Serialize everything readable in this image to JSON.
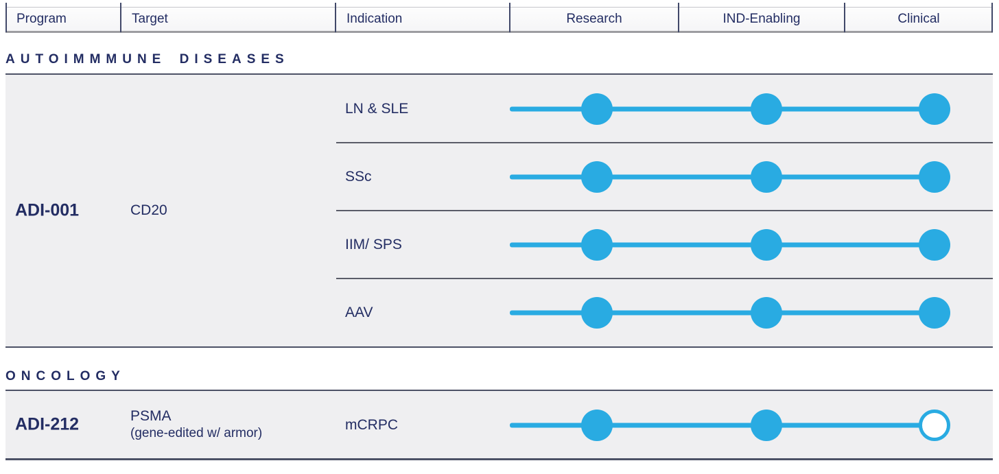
{
  "header": {
    "columns": [
      {
        "label": "Program"
      },
      {
        "label": "Target"
      },
      {
        "label": "Indication"
      },
      {
        "label": "Research"
      },
      {
        "label": "IND-Enabling"
      },
      {
        "label": "Clinical"
      }
    ]
  },
  "sections": [
    {
      "title": "AUTOIMMMUNE DISEASES",
      "programs": [
        {
          "name": "ADI-001",
          "target": "CD20",
          "target_sub": "",
          "rows": [
            {
              "indication": "LN & SLE",
              "stages": {
                "research": "filled",
                "ind_enabling": "filled",
                "clinical": "filled"
              }
            },
            {
              "indication": "SSc",
              "stages": {
                "research": "filled",
                "ind_enabling": "filled",
                "clinical": "filled"
              }
            },
            {
              "indication": "IIM/ SPS",
              "stages": {
                "research": "filled",
                "ind_enabling": "filled",
                "clinical": "filled"
              }
            },
            {
              "indication": "AAV",
              "stages": {
                "research": "filled",
                "ind_enabling": "filled",
                "clinical": "filled"
              }
            }
          ]
        }
      ]
    },
    {
      "title": "ONCOLOGY",
      "programs": [
        {
          "name": "ADI-212",
          "target": "PSMA",
          "target_sub": "(gene-edited w/ armor)",
          "rows": [
            {
              "indication": "mCRPC",
              "stages": {
                "research": "filled",
                "ind_enabling": "filled",
                "clinical": "open"
              }
            }
          ]
        }
      ]
    }
  ],
  "colors": {
    "accent_blue": "#29ABE2",
    "navy_text": "#232D63",
    "block_background": "#EFEFF1",
    "divider_gray": "#5A5C68",
    "open_dot_fill": "#FFFFFF"
  }
}
